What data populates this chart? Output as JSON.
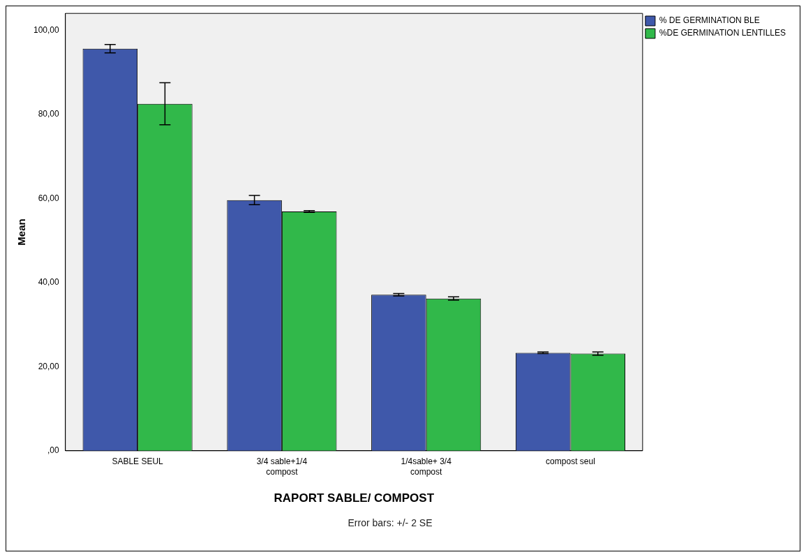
{
  "chart_data": {
    "type": "bar",
    "xlabel": "RAPORT SABLE/ COMPOST",
    "ylabel": "Mean",
    "categories": [
      "SABLE SEUL",
      "3/4 sable+1/4 compost",
      "1/4sable+ 3/4 compost",
      "compost seul"
    ],
    "series": [
      {
        "name": "% DE GERMINATION BLE",
        "color": "#3f58aa",
        "values": [
          95.6,
          59.6,
          37.1,
          23.3
        ],
        "errors": [
          1.0,
          1.1,
          0.3,
          0.2
        ]
      },
      {
        "name": "%DE GERMINATION LENTILLES",
        "color": "#31b84a",
        "values": [
          82.5,
          56.9,
          36.2,
          23.1
        ],
        "errors": [
          5.0,
          0.2,
          0.4,
          0.4
        ]
      }
    ],
    "ylim": [
      0,
      104
    ],
    "yticks": [
      {
        "value": 0,
        "label": ",00"
      },
      {
        "value": 20,
        "label": "20,00"
      },
      {
        "value": 40,
        "label": "40,00"
      },
      {
        "value": 60,
        "label": "60,00"
      },
      {
        "value": 80,
        "label": "80,00"
      },
      {
        "value": 100,
        "label": "100,00"
      }
    ],
    "grid": false,
    "legend": "top right",
    "annotations": [
      "Error bars: +/- 2 SE"
    ]
  }
}
